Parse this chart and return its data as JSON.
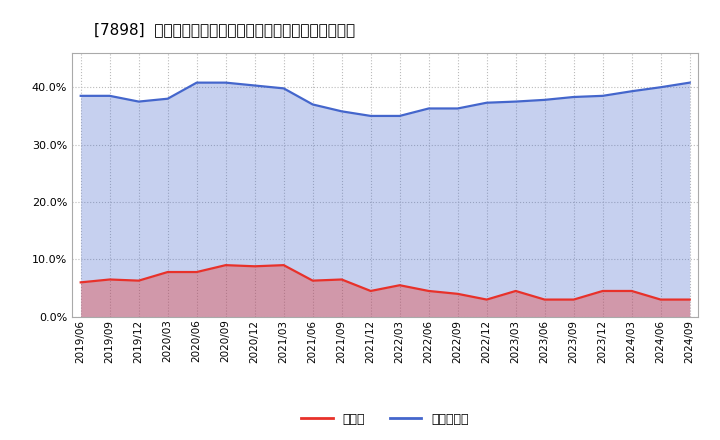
{
  "title": "[7898]  現須金、有利子負債の総資産に対する比率の推移",
  "x_labels": [
    "2019/06",
    "2019/09",
    "2019/12",
    "2020/03",
    "2020/06",
    "2020/09",
    "2020/12",
    "2021/03",
    "2021/06",
    "2021/09",
    "2021/12",
    "2022/03",
    "2022/06",
    "2022/09",
    "2022/12",
    "2023/03",
    "2023/06",
    "2023/09",
    "2023/12",
    "2024/03",
    "2024/06",
    "2024/09"
  ],
  "cash": [
    0.06,
    0.065,
    0.063,
    0.078,
    0.078,
    0.09,
    0.088,
    0.09,
    0.063,
    0.065,
    0.045,
    0.055,
    0.045,
    0.04,
    0.03,
    0.045,
    0.03,
    0.03,
    0.045,
    0.045,
    0.03,
    0.03
  ],
  "debt": [
    0.385,
    0.385,
    0.375,
    0.38,
    0.408,
    0.408,
    0.403,
    0.398,
    0.37,
    0.358,
    0.35,
    0.35,
    0.363,
    0.363,
    0.373,
    0.375,
    0.378,
    0.383,
    0.385,
    0.393,
    0.4,
    0.408
  ],
  "cash_color": "#e8312a",
  "debt_color": "#4466cc",
  "cash_fill_color": "#e8312a",
  "debt_fill_color": "#4466cc",
  "background_color": "#ffffff",
  "plot_bg_color": "#ffffff",
  "grid_color": "#bbbbbb",
  "ylim": [
    0.0,
    0.46
  ],
  "legend_cash": "現須金",
  "legend_debt": "有利子負債",
  "title_fontsize": 11,
  "tick_fontsize": 7.5,
  "ytick_fontsize": 8
}
